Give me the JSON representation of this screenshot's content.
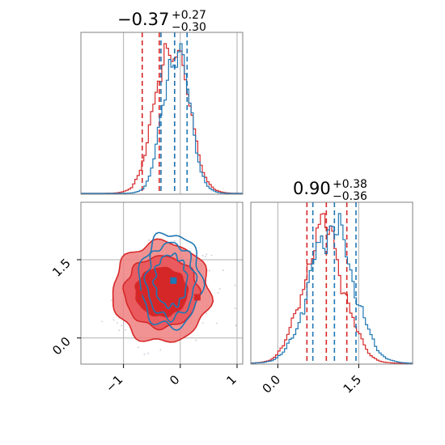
{
  "figure": {
    "titles": [
      {
        "value": "−0.37",
        "plus": "+0.27",
        "minus": "−0.30"
      },
      {
        "value": "0.90",
        "plus": "+0.38",
        "minus": "−0.36"
      }
    ]
  },
  "colors": {
    "red": "#d62728",
    "blue": "#1f77b4",
    "red_fill": "#f08080",
    "grid": "#b0b0b0",
    "scatter": "#c8c8d8"
  },
  "chart_data": [
    {
      "type": "histogram",
      "panel": "param-1-marginal",
      "xlim": [
        -1.75,
        1.1
      ],
      "series": [
        {
          "color": "red",
          "mode": -0.15,
          "quantiles": [
            -0.67,
            -0.37,
            -0.1
          ]
        },
        {
          "color": "blue",
          "mode": -0.07,
          "quantiles": [
            -0.34,
            -0.1,
            0.12
          ]
        }
      ],
      "grid": true
    },
    {
      "type": "histogram",
      "panel": "param-2-marginal",
      "xlim": [
        -0.5,
        2.5
      ],
      "xticks": [
        "0.0",
        "1.5"
      ],
      "series": [
        {
          "color": "red",
          "mode": 0.85,
          "quantiles": [
            0.54,
            0.9,
            1.28
          ]
        },
        {
          "color": "blue",
          "mode": 1.0,
          "quantiles": [
            0.65,
            1.05,
            1.45
          ]
        }
      ],
      "grid": true
    },
    {
      "type": "scatter",
      "panel": "joint-contour",
      "xlim": [
        -1.75,
        1.1
      ],
      "ylim": [
        -0.5,
        2.6
      ],
      "xticks": [
        "−1",
        "0",
        "1"
      ],
      "yticks": [
        "0.0",
        "1.5"
      ],
      "markers": [
        {
          "color": "blue",
          "x": -0.12,
          "y": 1.1
        },
        {
          "color": "red",
          "x": -0.33,
          "y": 0.88
        },
        {
          "color": "red",
          "x": -0.73,
          "y": 0.84
        },
        {
          "color": "red",
          "x": 0.3,
          "y": 0.78
        }
      ],
      "red_center": [
        -0.33,
        0.88
      ],
      "blue_center": [
        -0.17,
        1.1
      ],
      "grid": true
    }
  ]
}
